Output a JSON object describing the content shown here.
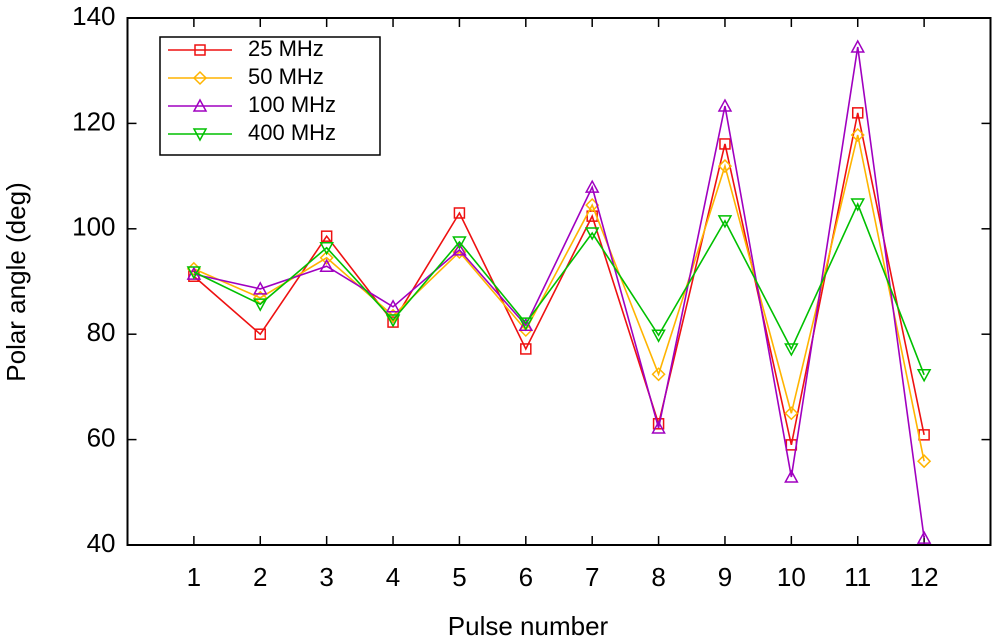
{
  "chart_data": {
    "type": "line",
    "xlabel": "Pulse number",
    "ylabel": "Polar angle (deg)",
    "x": [
      1,
      2,
      3,
      4,
      5,
      6,
      7,
      8,
      9,
      10,
      11,
      12
    ],
    "xlim": [
      0,
      13
    ],
    "xticks": [
      1,
      2,
      3,
      4,
      5,
      6,
      7,
      8,
      9,
      10,
      11,
      12
    ],
    "ylim": [
      40,
      140
    ],
    "yticks": [
      40,
      60,
      80,
      100,
      120,
      140
    ],
    "legend": "upper left",
    "series": [
      {
        "name": "25 MHz",
        "color": "#ee1111",
        "marker": "square",
        "values": [
          91.0,
          80.0,
          98.6,
          82.3,
          103.0,
          77.2,
          102.4,
          63.0,
          116.1,
          59.0,
          122.0,
          60.9
        ]
      },
      {
        "name": "50 MHz",
        "color": "#ffb400",
        "marker": "diamond",
        "values": [
          92.4,
          86.9,
          94.5,
          83.5,
          95.6,
          80.8,
          104.5,
          72.4,
          111.9,
          65.0,
          117.8,
          55.9
        ]
      },
      {
        "name": "100 MHz",
        "color": "#a000c0",
        "marker": "triangle-up",
        "values": [
          91.4,
          88.6,
          92.9,
          85.2,
          96.0,
          81.7,
          107.9,
          62.2,
          123.3,
          52.9,
          134.5,
          41.3
        ]
      },
      {
        "name": "400 MHz",
        "color": "#00c000",
        "marker": "triangle-down",
        "values": [
          91.8,
          85.7,
          96.4,
          82.7,
          97.5,
          82.1,
          99.2,
          79.8,
          101.5,
          77.2,
          104.7,
          72.3
        ]
      }
    ]
  }
}
